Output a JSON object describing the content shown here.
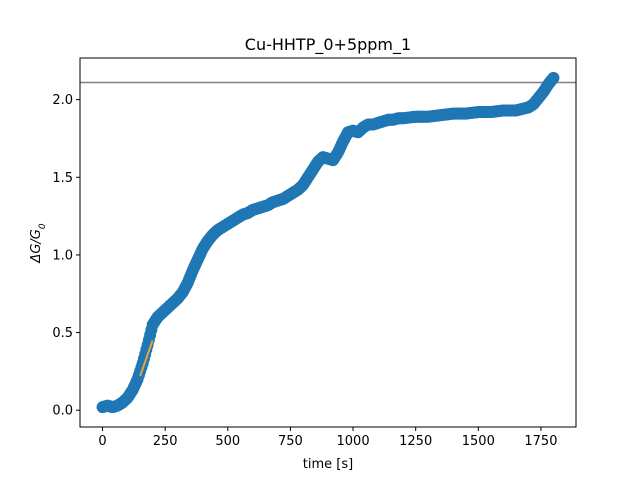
{
  "chart_data": {
    "type": "scatter",
    "title": "Cu-HHTP_0+5ppm_1",
    "xlabel": "time [s]",
    "ylabel_main": "ΔG/G",
    "ylabel_sub": "0",
    "xlim": [
      -90,
      1890
    ],
    "ylim": [
      -0.108,
      2.268
    ],
    "xticks": [
      0,
      250,
      500,
      750,
      1000,
      1250,
      1500,
      1750
    ],
    "xtick_labels": [
      "0",
      "250",
      "500",
      "750",
      "1000",
      "1250",
      "1500",
      "1750"
    ],
    "yticks": [
      0.0,
      0.5,
      1.0,
      1.5,
      2.0
    ],
    "ytick_labels": [
      "0.0",
      "0.5",
      "1.0",
      "1.5",
      "2.0"
    ],
    "grid": false,
    "hline": {
      "y": 2.11,
      "color": "#808080"
    },
    "fit_line": {
      "x": [
        150,
        200
      ],
      "y": [
        0.22,
        0.45
      ],
      "color": "#e8a33d"
    },
    "marker_color": "#1f77b4",
    "series": [
      {
        "x": [
          0,
          20,
          40,
          60,
          80,
          100,
          120,
          140,
          160,
          180,
          200,
          220,
          240,
          260,
          280,
          300,
          320,
          340,
          360,
          380,
          400,
          420,
          440,
          460,
          480,
          500,
          520,
          540,
          560,
          580,
          600,
          620,
          640,
          660,
          680,
          700,
          720,
          740,
          760,
          780,
          800,
          820,
          840,
          860,
          880,
          900,
          920,
          940,
          960,
          980,
          1000,
          1020,
          1040,
          1060,
          1080,
          1100,
          1120,
          1140,
          1160,
          1180,
          1200,
          1250,
          1300,
          1350,
          1400,
          1450,
          1500,
          1550,
          1600,
          1650,
          1700,
          1720,
          1740,
          1760,
          1780,
          1800
        ],
        "y": [
          0.02,
          0.03,
          0.02,
          0.03,
          0.05,
          0.08,
          0.13,
          0.2,
          0.3,
          0.42,
          0.55,
          0.6,
          0.63,
          0.66,
          0.69,
          0.72,
          0.76,
          0.82,
          0.9,
          0.97,
          1.04,
          1.09,
          1.13,
          1.16,
          1.18,
          1.2,
          1.22,
          1.24,
          1.26,
          1.27,
          1.29,
          1.3,
          1.31,
          1.32,
          1.34,
          1.35,
          1.36,
          1.38,
          1.4,
          1.42,
          1.45,
          1.5,
          1.55,
          1.6,
          1.63,
          1.62,
          1.61,
          1.66,
          1.73,
          1.79,
          1.8,
          1.79,
          1.82,
          1.84,
          1.84,
          1.85,
          1.86,
          1.87,
          1.87,
          1.88,
          1.88,
          1.89,
          1.89,
          1.9,
          1.91,
          1.91,
          1.92,
          1.92,
          1.93,
          1.93,
          1.95,
          1.97,
          2.01,
          2.05,
          2.1,
          2.14
        ]
      }
    ]
  }
}
